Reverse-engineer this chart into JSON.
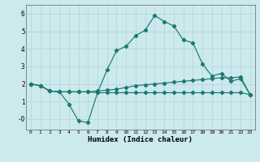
{
  "xlabel": "Humidex (Indice chaleur)",
  "background_color": "#cce9ed",
  "grid_color": "#b0d4d8",
  "line_color": "#1a7a6e",
  "xlim": [
    -0.5,
    23.5
  ],
  "ylim": [
    -0.6,
    6.5
  ],
  "xticks": [
    0,
    1,
    2,
    3,
    4,
    5,
    6,
    7,
    8,
    9,
    10,
    11,
    12,
    13,
    14,
    15,
    16,
    17,
    18,
    19,
    20,
    21,
    22,
    23
  ],
  "yticks": [
    0,
    1,
    2,
    3,
    4,
    5,
    6
  ],
  "ytick_labels": [
    "-0",
    "1",
    "2",
    "3",
    "4",
    "5",
    "6"
  ],
  "series1_y": [
    2.0,
    1.9,
    1.6,
    1.55,
    0.85,
    -0.1,
    -0.2,
    1.5,
    2.8,
    3.9,
    4.15,
    4.75,
    5.05,
    5.9,
    5.55,
    5.3,
    4.5,
    4.35,
    3.15,
    2.45,
    2.6,
    2.15,
    2.3,
    1.4
  ],
  "series2_y": [
    2.0,
    1.9,
    1.6,
    1.55,
    1.55,
    1.55,
    1.55,
    1.6,
    1.65,
    1.7,
    1.8,
    1.9,
    1.95,
    2.0,
    2.05,
    2.1,
    2.15,
    2.2,
    2.25,
    2.3,
    2.35,
    2.35,
    2.4,
    1.4
  ],
  "series3_y": [
    2.0,
    1.9,
    1.6,
    1.55,
    1.55,
    1.55,
    1.55,
    1.5,
    1.5,
    1.5,
    1.5,
    1.5,
    1.5,
    1.5,
    1.5,
    1.5,
    1.5,
    1.5,
    1.5,
    1.5,
    1.5,
    1.5,
    1.5,
    1.4
  ]
}
